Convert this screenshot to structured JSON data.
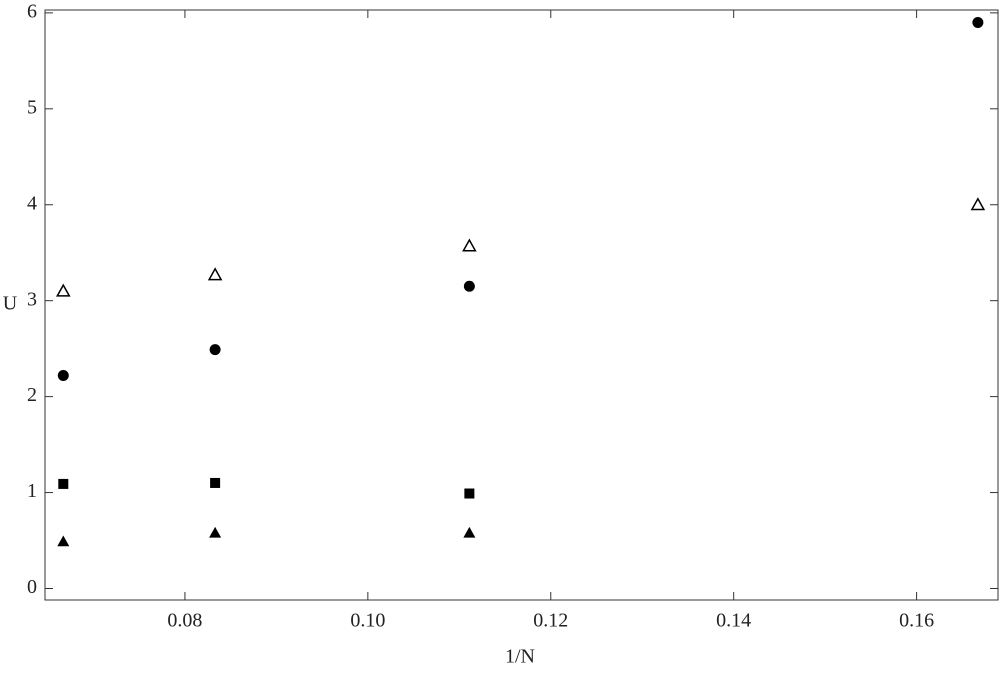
{
  "chart_data": {
    "type": "scatter",
    "x_label": "1/N",
    "y_label": "U",
    "x": [
      0.0667,
      0.0833,
      0.1111,
      0.1667
    ],
    "series": [
      {
        "color": "#000000",
        "marker": "triangle-open",
        "values": [
          3.1,
          3.27,
          3.57,
          4.0
        ]
      },
      {
        "color": "#000000",
        "marker": "circle",
        "values": [
          2.22,
          2.49,
          3.15,
          5.9
        ]
      },
      {
        "color": "#000000",
        "marker": "square",
        "values": [
          1.09,
          1.1,
          0.99,
          null
        ]
      },
      {
        "color": "#000000",
        "marker": "triangle",
        "values": [
          0.49,
          0.58,
          0.58,
          null
        ]
      }
    ],
    "xlim": [
      0.0647,
      0.1689
    ],
    "ylim": [
      -0.12,
      6.03
    ],
    "xticks": [
      0.08,
      {
        "value": 0.1,
        "label": "0.10"
      },
      0.12,
      0.14,
      0.16
    ],
    "yticks": [
      0,
      1,
      2,
      3,
      4,
      5,
      6
    ],
    "grid": false
  }
}
